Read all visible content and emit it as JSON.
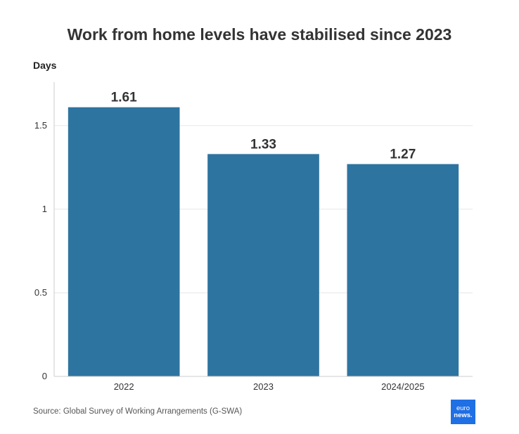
{
  "brand_color": "#2e74a0",
  "logo": {
    "line1": "euro",
    "line2": "news."
  },
  "source": "Source: Global Survey of Working Arrangements (G-SWA)",
  "chart_data": {
    "type": "bar",
    "title": "Work from home levels have stabilised since 2023",
    "ylabel": "Days",
    "xlabel": "",
    "categories": [
      "2022",
      "2023",
      "2024/2025"
    ],
    "values": [
      1.61,
      1.33,
      1.27
    ],
    "data_labels": [
      "1.61",
      "1.33",
      "1.27"
    ],
    "yticks": [
      0,
      0.5,
      1,
      1.5
    ],
    "ytick_labels": [
      "0",
      "0.5",
      "1",
      "1.5"
    ],
    "ylim": [
      0,
      1.76
    ],
    "grid": true,
    "bar_color": "#2e74a0"
  }
}
